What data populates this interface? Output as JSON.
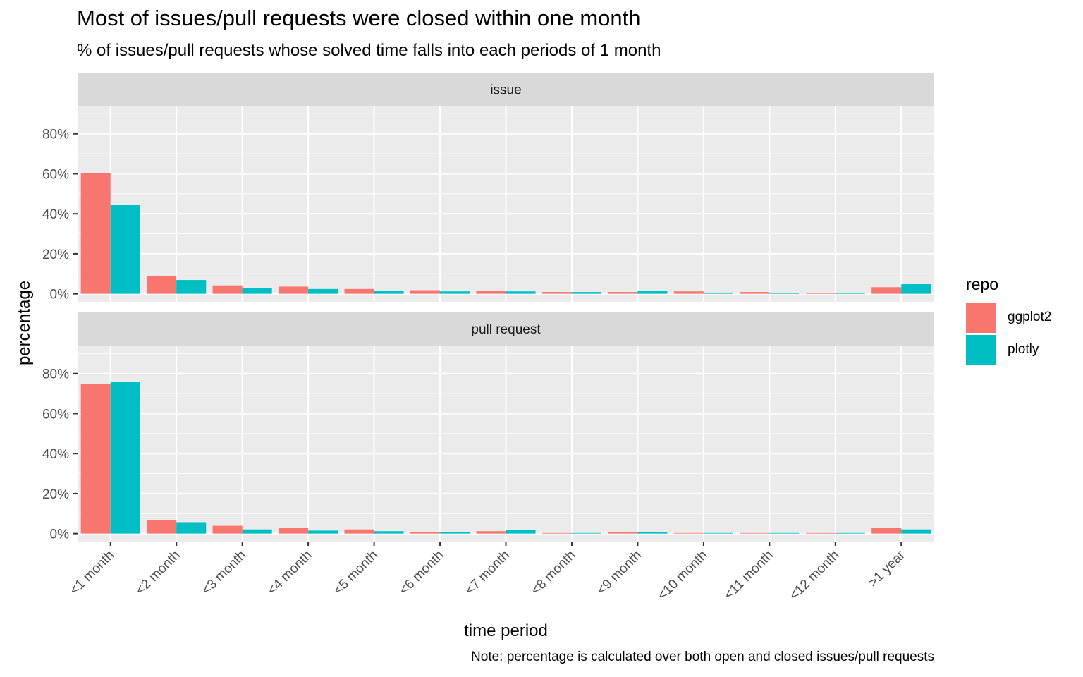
{
  "chart_data": {
    "type": "bar",
    "title": "Most of issues/pull requests were closed within one month",
    "subtitle": "% of issues/pull requests whose solved time falls into each periods of 1 month",
    "caption": "Note: percentage is calculated over both open and closed issues/pull requests",
    "xlabel": "time period",
    "ylabel": "percentage",
    "categories": [
      "<1 month",
      "<2 month",
      "<3 month",
      "<4 month",
      "<5 month",
      "<6 month",
      "<7 month",
      "<8 month",
      "<9 month",
      "<10 month",
      "<11 month",
      "<12 month",
      ">1 year"
    ],
    "ylim": [
      -4,
      94
    ],
    "yticks": [
      0,
      20,
      40,
      60,
      80
    ],
    "ytick_labels": [
      "0%",
      "20%",
      "40%",
      "60%",
      "80%"
    ],
    "grid": true,
    "legend": {
      "title": "repo",
      "position": "right",
      "items": [
        {
          "name": "ggplot2",
          "color": "#F8766D"
        },
        {
          "name": "plotly",
          "color": "#00BFC4"
        }
      ]
    },
    "facets": [
      {
        "label": "issue",
        "series": [
          {
            "name": "ggplot2",
            "color": "#F8766D",
            "values": [
              60.5,
              8.7,
              4.2,
              3.6,
              2.4,
              1.8,
              1.5,
              0.9,
              0.9,
              1.2,
              0.9,
              0.5,
              3.3
            ]
          },
          {
            "name": "plotly",
            "color": "#00BFC4",
            "values": [
              44.6,
              6.9,
              3.0,
              2.4,
              1.5,
              1.2,
              1.2,
              0.9,
              1.5,
              0.6,
              0.3,
              0.3,
              4.8
            ]
          }
        ]
      },
      {
        "label": "pull request",
        "series": [
          {
            "name": "ggplot2",
            "color": "#F8766D",
            "values": [
              74.8,
              6.9,
              3.9,
              2.7,
              2.1,
              0.6,
              1.2,
              0.3,
              0.9,
              0.3,
              0.3,
              0.3,
              2.7
            ]
          },
          {
            "name": "plotly",
            "color": "#00BFC4",
            "values": [
              76.0,
              5.7,
              2.1,
              1.5,
              1.2,
              0.9,
              1.8,
              0.3,
              0.9,
              0.3,
              0.3,
              0.3,
              2.1
            ]
          }
        ]
      }
    ]
  }
}
